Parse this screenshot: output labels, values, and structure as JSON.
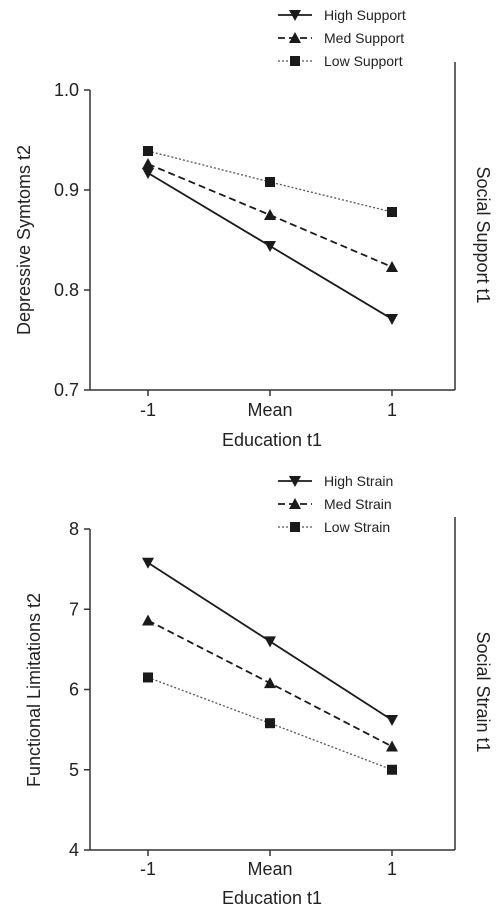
{
  "chart_data": [
    {
      "type": "line",
      "categories": [
        "-1",
        "Mean",
        "1"
      ],
      "xlabel": "Education t1",
      "ylabel": "Depressive Symtoms t2",
      "right_label": "Social Support t1",
      "ylim": [
        0.7,
        1.0
      ],
      "yticks": [
        "0.7",
        "0.8",
        "0.9",
        "1.0"
      ],
      "ytick_values": [
        0.7,
        0.8,
        0.9,
        1.0
      ],
      "legend_position": "top-right",
      "grid": false,
      "series": [
        {
          "name": "High Support",
          "marker": "triangle-down",
          "dash": "solid",
          "values": [
            0.917,
            0.844,
            0.771
          ]
        },
        {
          "name": "Med Support",
          "marker": "triangle-up",
          "dash": "dashed",
          "values": [
            0.926,
            0.875,
            0.823
          ]
        },
        {
          "name": "Low Support",
          "marker": "square",
          "dash": "dotted",
          "values": [
            0.939,
            0.908,
            0.878
          ]
        }
      ]
    },
    {
      "type": "line",
      "categories": [
        "-1",
        "Mean",
        "1"
      ],
      "xlabel": "Education t1",
      "ylabel": "Functional Limitations t2",
      "right_label": "Social Strain t1",
      "ylim": [
        4,
        8
      ],
      "yticks": [
        "4",
        "5",
        "6",
        "7",
        "8"
      ],
      "ytick_values": [
        4,
        5,
        6,
        7,
        8
      ],
      "legend_position": "top-right",
      "grid": false,
      "series": [
        {
          "name": "High Strain",
          "marker": "triangle-down",
          "dash": "solid",
          "values": [
            7.58,
            6.6,
            5.62
          ]
        },
        {
          "name": "Med Strain",
          "marker": "triangle-up",
          "dash": "dashed",
          "values": [
            6.86,
            6.08,
            5.29
          ]
        },
        {
          "name": "Low Strain",
          "marker": "square",
          "dash": "dotted",
          "values": [
            6.15,
            5.58,
            5.0
          ]
        }
      ]
    }
  ]
}
